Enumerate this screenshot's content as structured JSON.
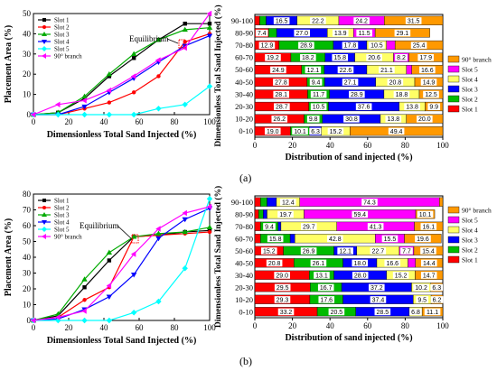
{
  "panels": [
    {
      "label": "(a)"
    },
    {
      "label": "(b)"
    }
  ],
  "chart_data": [
    {
      "type": "line",
      "panel": "a",
      "xlabel": "Dimensionless Total Sand Injected (%)",
      "ylabel": "Placement Area (%)",
      "xlim": [
        0,
        100
      ],
      "ylim": [
        0,
        50
      ],
      "xticks": [
        0,
        20,
        40,
        60,
        80,
        100
      ],
      "yticks": [
        0,
        10,
        20,
        30,
        40,
        50
      ],
      "annotation": "Equilibrium",
      "legend_position": "top-left",
      "series": [
        {
          "name": "Slot 1",
          "color": "#000000",
          "marker": "square",
          "x": [
            0,
            14,
            29,
            43,
            57,
            71,
            86,
            100
          ],
          "y": [
            0,
            1,
            8,
            19,
            28,
            37,
            45,
            45
          ]
        },
        {
          "name": "Slot 2",
          "color": "#ff0000",
          "marker": "circle",
          "x": [
            0,
            14,
            29,
            43,
            57,
            71,
            86,
            100
          ],
          "y": [
            0,
            0,
            3,
            6,
            11,
            19,
            36,
            40
          ]
        },
        {
          "name": "Slot 3",
          "color": "#00aa00",
          "marker": "triangle-up",
          "x": [
            0,
            14,
            29,
            43,
            57,
            71,
            86,
            100
          ],
          "y": [
            0,
            1,
            9,
            20,
            30,
            37,
            42,
            43
          ]
        },
        {
          "name": "Slot 4",
          "color": "#0000ff",
          "marker": "triangle-down",
          "x": [
            0,
            14,
            29,
            43,
            57,
            71,
            86,
            100
          ],
          "y": [
            0,
            0,
            4,
            11,
            18,
            26,
            34,
            39
          ]
        },
        {
          "name": "Slot 5",
          "color": "#00ffff",
          "marker": "diamond",
          "x": [
            0,
            14,
            29,
            43,
            57,
            71,
            86,
            100
          ],
          "y": [
            0,
            0,
            0,
            0,
            0,
            3,
            5,
            14
          ]
        },
        {
          "name": "90° branch",
          "color": "#ff00ff",
          "marker": "triangle-left",
          "x": [
            0,
            14,
            29,
            43,
            57,
            71,
            86,
            100
          ],
          "y": [
            0,
            5,
            7,
            12,
            19,
            27,
            33,
            50
          ]
        }
      ]
    },
    {
      "type": "bar",
      "orientation": "horizontal-stacked",
      "panel": "a",
      "xlabel": "Distribution of sand injected (%)",
      "ylabel": "Dimensionless Total Sand Injected (%)",
      "xlim": [
        0,
        100
      ],
      "xticks": [
        0,
        20,
        40,
        60,
        80,
        100
      ],
      "categories": [
        "0-10",
        "10-20",
        "20-30",
        "30-40",
        "40-50",
        "50-60",
        "60-70",
        "70-80",
        "80-90",
        "90-100"
      ],
      "legend_position": "right",
      "series": [
        {
          "name": "Slot 1",
          "color": "#ff0000",
          "values": [
            19.0,
            26.2,
            28.7,
            28.1,
            27.8,
            24.9,
            19.2,
            12.9,
            7.4,
            2.6
          ]
        },
        {
          "name": "Slot 2",
          "color": "#00bb00",
          "values": [
            10.1,
            9.8,
            10.5,
            11.7,
            9.4,
            12.1,
            18.2,
            28.9,
            4.2,
            3.4
          ]
        },
        {
          "name": "Slot 3",
          "color": "#0000ff",
          "values": [
            6.3,
            30.8,
            37.6,
            28.9,
            27.1,
            22.6,
            15.8,
            17.8,
            27.0,
            16.5
          ]
        },
        {
          "name": "Slot 4",
          "color": "#ffff66",
          "values": [
            15.2,
            13.8,
            13.8,
            18.8,
            20.8,
            21.1,
            20.6,
            10.5,
            13.9,
            22.2
          ]
        },
        {
          "name": "Slot 5",
          "color": "#ff00ff",
          "values": [
            0.0,
            0.0,
            0.0,
            0.0,
            0.0,
            2.8,
            8.2,
            4.5,
            11.5,
            24.2
          ]
        },
        {
          "name": "90° branch",
          "color": "#ff9900",
          "values": [
            49.4,
            20.0,
            9.9,
            12.5,
            14.9,
            16.6,
            17.9,
            25.4,
            29.1,
            31.5
          ]
        }
      ],
      "labels": [
        [
          "19.0",
          "10.1",
          "6.3",
          "15.2",
          "",
          "49.4"
        ],
        [
          "26.2",
          "9.8",
          "30.8",
          "13.8",
          "",
          "20.0"
        ],
        [
          "28.7",
          "10.5",
          "37.6",
          "13.8",
          "",
          "9.9"
        ],
        [
          "28.1",
          "11.7",
          "28.9",
          "18.8",
          "",
          "12.5"
        ],
        [
          "27.8",
          "9.4",
          "27.1",
          "20.8",
          "",
          "14.9"
        ],
        [
          "24.9",
          "12.1",
          "22.6",
          "21.1",
          "",
          "16.6"
        ],
        [
          "19.2",
          "18.2",
          "15.8",
          "20.6",
          "8.2",
          "17.9"
        ],
        [
          "12.9",
          "28.9",
          "17.8",
          "10.5",
          "",
          "25.4"
        ],
        [
          "7.4",
          "",
          "27.0",
          "13.9",
          "11.5",
          "29.1"
        ],
        [
          "",
          "",
          "16.5",
          "22.2",
          "24.2",
          "31.5"
        ]
      ]
    },
    {
      "type": "line",
      "panel": "b",
      "xlabel": "Dimensionless Total Sand Injected (%)",
      "ylabel": "Placement Area (%)",
      "xlim": [
        0,
        100
      ],
      "ylim": [
        0,
        80
      ],
      "xticks": [
        0,
        20,
        40,
        60,
        80,
        100
      ],
      "yticks": [
        0,
        10,
        20,
        30,
        40,
        50,
        60,
        70,
        80
      ],
      "annotation": "Equilibrium",
      "legend_position": "top-left",
      "series": [
        {
          "name": "Slot 1",
          "color": "#000000",
          "marker": "square",
          "x": [
            0,
            14,
            29,
            43,
            57,
            71,
            86,
            100
          ],
          "y": [
            0,
            3,
            21,
            38,
            53,
            54,
            56,
            57
          ]
        },
        {
          "name": "Slot 2",
          "color": "#ff0000",
          "marker": "circle",
          "x": [
            0,
            14,
            29,
            43,
            57,
            71,
            86,
            100
          ],
          "y": [
            0,
            2,
            13,
            21,
            53,
            54,
            55,
            56
          ]
        },
        {
          "name": "Slot 3",
          "color": "#00aa00",
          "marker": "triangle-up",
          "x": [
            0,
            14,
            29,
            43,
            57,
            71,
            86,
            100
          ],
          "y": [
            0,
            4,
            26,
            43,
            53,
            55,
            56,
            59
          ]
        },
        {
          "name": "Slot 4",
          "color": "#0000ff",
          "marker": "triangle-down",
          "x": [
            0,
            14,
            29,
            43,
            57,
            71,
            86,
            100
          ],
          "y": [
            0,
            1,
            7,
            15,
            29,
            52,
            64,
            71
          ]
        },
        {
          "name": "Slot 5",
          "color": "#00ffff",
          "marker": "diamond",
          "x": [
            0,
            14,
            29,
            43,
            57,
            71,
            86,
            100
          ],
          "y": [
            0,
            0,
            0,
            0,
            5,
            12,
            33,
            77
          ]
        },
        {
          "name": "90° branch",
          "color": "#ff00ff",
          "marker": "triangle-left",
          "x": [
            0,
            14,
            29,
            43,
            57,
            71,
            86,
            100
          ],
          "y": [
            0,
            2,
            6,
            22,
            42,
            58,
            68,
            72
          ]
        }
      ]
    },
    {
      "type": "bar",
      "orientation": "horizontal-stacked",
      "panel": "b",
      "xlabel": "Distribution of sand injected (%)",
      "ylabel": "Dimensionless Total Sand Injected (%)",
      "xlim": [
        0,
        100
      ],
      "xticks": [
        0,
        20,
        40,
        60,
        80,
        100
      ],
      "categories": [
        "0-10",
        "10-20",
        "20-30",
        "30-40",
        "40-50",
        "50-60",
        "60-70",
        "70-80",
        "80-90",
        "90-100"
      ],
      "legend_position": "right",
      "series": [
        {
          "name": "Slot 1",
          "color": "#ff0000",
          "values": [
            33.2,
            29.3,
            29.5,
            29.0,
            20.8,
            15.2,
            3.0,
            3.0,
            2.0,
            3.0
          ]
        },
        {
          "name": "Slot 2",
          "color": "#00bb00",
          "values": [
            20.5,
            17.6,
            16.7,
            13.1,
            26.1,
            26.9,
            15.8,
            9.4,
            2.5,
            3.5
          ]
        },
        {
          "name": "Slot 3",
          "color": "#0000ff",
          "values": [
            28.5,
            37.4,
            37.2,
            28.0,
            18.0,
            12.1,
            2.5,
            1.5,
            2.0,
            5.0
          ]
        },
        {
          "name": "Slot 4",
          "color": "#ffff66",
          "values": [
            6.8,
            9.5,
            10.2,
            15.2,
            16.6,
            22.7,
            42.8,
            29.7,
            19.7,
            12.4
          ]
        },
        {
          "name": "Slot 5",
          "color": "#ff00ff",
          "values": [
            0.0,
            0.0,
            0.0,
            0.0,
            4.0,
            7.7,
            15.5,
            41.3,
            59.4,
            74.3
          ]
        },
        {
          "name": "90° branch",
          "color": "#ff9900",
          "values": [
            11.1,
            6.2,
            6.3,
            14.7,
            14.4,
            15.4,
            19.6,
            16.1,
            10.1,
            1.8
          ]
        }
      ],
      "labels": [
        [
          "33.2",
          "20.5",
          "28.5",
          "6.8",
          "",
          "11.1"
        ],
        [
          "29.3",
          "17.6",
          "37.4",
          "9.5",
          "",
          "6.2"
        ],
        [
          "29.5",
          "16.7",
          "37.2",
          "10.2",
          "",
          "6.3"
        ],
        [
          "29.0",
          "13.1",
          "28.0",
          "15.2",
          "",
          "14.7"
        ],
        [
          "20.8",
          "26.1",
          "18.0",
          "16.6",
          "",
          "14.4"
        ],
        [
          "15.2",
          "26.9",
          "12.1",
          "22.7",
          "7.7",
          "15.4"
        ],
        [
          "",
          "15.8",
          "",
          "42.8",
          "15.5",
          "19.6"
        ],
        [
          "",
          "9.4",
          "",
          "29.7",
          "41.3",
          "16.1"
        ],
        [
          "",
          "",
          "",
          "19.7",
          "59.4",
          "10.1"
        ],
        [
          "",
          "",
          "",
          "12.4",
          "74.3",
          ""
        ]
      ]
    }
  ]
}
